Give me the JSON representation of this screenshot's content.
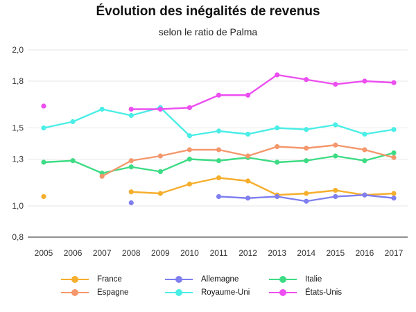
{
  "chart_data": {
    "type": "line",
    "title": "Évolution des inégalités de revenus",
    "subtitle": "selon le ratio de Palma",
    "xlabel": "",
    "ylabel": "",
    "ylim": [
      0.8,
      2.0
    ],
    "yticks": [
      0.8,
      1.0,
      1.3,
      1.5,
      1.8,
      2.0
    ],
    "ytick_labels": [
      "0,8",
      "1,0",
      "1,3",
      "1,5",
      "1,8",
      "2,0"
    ],
    "categories": [
      "2005",
      "2006",
      "2007",
      "2008",
      "2009",
      "2010",
      "2011",
      "2012",
      "2013",
      "2014",
      "2015",
      "2016",
      "2017"
    ],
    "grid": true,
    "legend_position": "bottom",
    "series": [
      {
        "name": "France",
        "color": "#f6ae2d",
        "values": [
          1.06,
          null,
          null,
          1.09,
          1.08,
          1.14,
          1.18,
          1.16,
          1.07,
          1.08,
          1.1,
          1.07,
          1.08
        ]
      },
      {
        "name": "Allemagne",
        "color": "#7f7ff0",
        "values": [
          null,
          null,
          null,
          1.02,
          null,
          null,
          1.06,
          1.05,
          1.06,
          1.03,
          1.06,
          1.07,
          1.05
        ]
      },
      {
        "name": "Italie",
        "color": "#3ddc84",
        "values": [
          1.28,
          1.29,
          1.21,
          1.25,
          1.22,
          1.3,
          1.29,
          1.31,
          1.28,
          1.29,
          1.32,
          1.29,
          1.34
        ]
      },
      {
        "name": "Espagne",
        "color": "#f4976c",
        "values": [
          null,
          null,
          1.19,
          1.29,
          1.32,
          1.36,
          1.36,
          1.32,
          1.38,
          1.37,
          1.39,
          1.36,
          1.31
        ]
      },
      {
        "name": "Royaume-Uni",
        "color": "#4aeee6",
        "values": [
          1.5,
          1.54,
          1.62,
          1.58,
          1.63,
          1.45,
          1.48,
          1.46,
          1.5,
          1.49,
          1.52,
          1.46,
          1.49
        ]
      },
      {
        "name": "États-Unis",
        "color": "#ec4ef0",
        "values": [
          1.64,
          null,
          null,
          1.62,
          1.62,
          1.63,
          1.71,
          1.71,
          1.84,
          1.81,
          1.78,
          1.8,
          1.79
        ]
      }
    ]
  }
}
